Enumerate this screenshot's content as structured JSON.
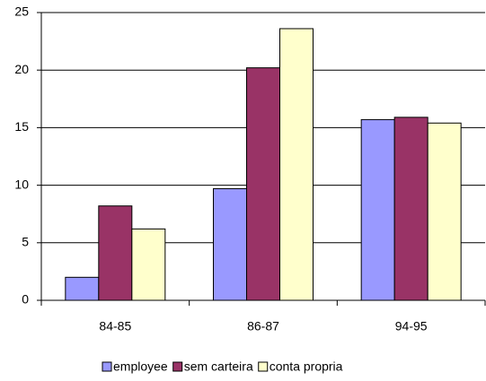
{
  "chart_data": {
    "type": "bar",
    "categories": [
      "84-85",
      "86-87",
      "94-95"
    ],
    "series": [
      {
        "name": "employee",
        "color": "#9999ff",
        "values": [
          2.0,
          9.7,
          15.7
        ]
      },
      {
        "name": "sem carteira",
        "color": "#993366",
        "values": [
          8.2,
          20.2,
          15.9
        ]
      },
      {
        "name": "conta propria",
        "color": "#ffffcc",
        "values": [
          6.2,
          23.6,
          15.4
        ]
      }
    ],
    "ylim": [
      0,
      25
    ],
    "yticks": [
      0,
      5,
      10,
      15,
      20,
      25
    ],
    "grid": true,
    "legend": "bottom"
  }
}
